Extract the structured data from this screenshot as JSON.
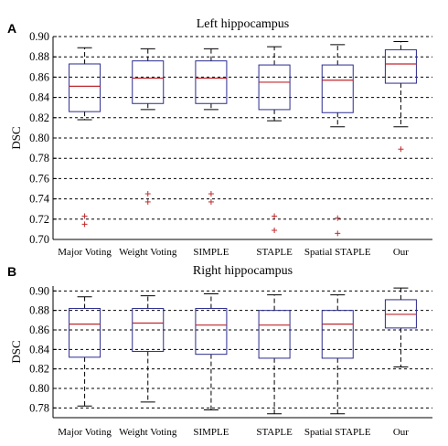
{
  "chart_data": [
    {
      "type": "box",
      "panel": "A",
      "title": "Left hippocampus",
      "ylabel": "DSC",
      "xlabel": "",
      "ylim": [
        0.7,
        0.9
      ],
      "yticks": [
        0.7,
        0.72,
        0.74,
        0.76,
        0.78,
        0.8,
        0.82,
        0.84,
        0.86,
        0.88,
        0.9
      ],
      "grid": "horizontal-dashed",
      "categories": [
        "Major Voting",
        "Weight Voting",
        "SIMPLE",
        "STAPLE",
        "Spatial STAPLE",
        "Our"
      ],
      "boxes": [
        {
          "whisker_low": 0.818,
          "q1": 0.826,
          "median": 0.851,
          "q3": 0.873,
          "whisker_high": 0.889,
          "outliers": [
            0.723,
            0.715
          ]
        },
        {
          "whisker_low": 0.828,
          "q1": 0.834,
          "median": 0.859,
          "q3": 0.876,
          "whisker_high": 0.888,
          "outliers": [
            0.745,
            0.737
          ]
        },
        {
          "whisker_low": 0.828,
          "q1": 0.834,
          "median": 0.859,
          "q3": 0.876,
          "whisker_high": 0.888,
          "outliers": [
            0.745,
            0.737
          ]
        },
        {
          "whisker_low": 0.817,
          "q1": 0.828,
          "median": 0.855,
          "q3": 0.872,
          "whisker_high": 0.89,
          "outliers": [
            0.723,
            0.709
          ]
        },
        {
          "whisker_low": 0.811,
          "q1": 0.825,
          "median": 0.857,
          "q3": 0.872,
          "whisker_high": 0.892,
          "outliers": [
            0.721,
            0.706
          ]
        },
        {
          "whisker_low": 0.811,
          "q1": 0.854,
          "median": 0.873,
          "q3": 0.887,
          "whisker_high": 0.895,
          "outliers": [
            0.789
          ]
        }
      ]
    },
    {
      "type": "box",
      "panel": "B",
      "title": "Right hippocampus",
      "ylabel": "DSC",
      "xlabel": "",
      "ylim": [
        0.77,
        0.905
      ],
      "yticks": [
        0.78,
        0.8,
        0.82,
        0.84,
        0.86,
        0.88,
        0.9
      ],
      "grid": "horizontal-dashed",
      "categories": [
        "Major Voting",
        "Weight Voting",
        "SIMPLE",
        "STAPLE",
        "Spatial STAPLE",
        "Our"
      ],
      "boxes": [
        {
          "whisker_low": 0.782,
          "q1": 0.832,
          "median": 0.866,
          "q3": 0.882,
          "whisker_high": 0.894,
          "outliers": []
        },
        {
          "whisker_low": 0.786,
          "q1": 0.838,
          "median": 0.867,
          "q3": 0.882,
          "whisker_high": 0.895,
          "outliers": []
        },
        {
          "whisker_low": 0.778,
          "q1": 0.835,
          "median": 0.865,
          "q3": 0.882,
          "whisker_high": 0.897,
          "outliers": []
        },
        {
          "whisker_low": 0.774,
          "q1": 0.831,
          "median": 0.865,
          "q3": 0.88,
          "whisker_high": 0.896,
          "outliers": []
        },
        {
          "whisker_low": 0.774,
          "q1": 0.831,
          "median": 0.866,
          "q3": 0.88,
          "whisker_high": 0.896,
          "outliers": []
        },
        {
          "whisker_low": 0.822,
          "q1": 0.862,
          "median": 0.876,
          "q3": 0.891,
          "whisker_high": 0.903,
          "outliers": []
        }
      ]
    }
  ],
  "colors": {
    "box": "#2b2b8f",
    "median": "#c0282d",
    "outlier": "#c0282d",
    "whisker": "#000000",
    "grid": "#000000"
  }
}
